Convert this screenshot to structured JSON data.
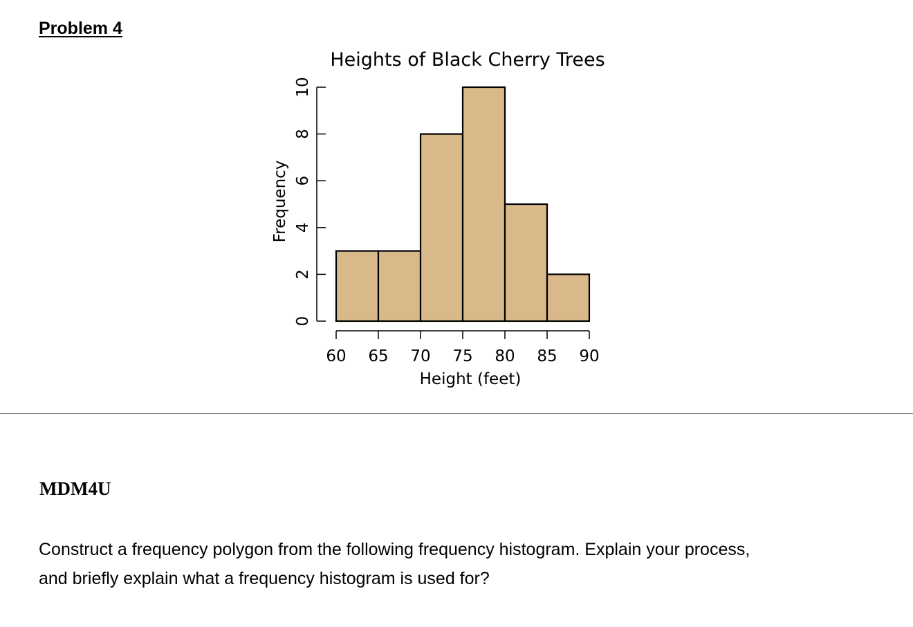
{
  "header": {
    "problem_label": "Problem 4"
  },
  "course": {
    "code": "MDM4U"
  },
  "question": {
    "line1": "Construct a frequency polygon from the following frequency histogram. Explain your process,",
    "line2": "and briefly explain what a frequency histogram is used for?"
  },
  "chart_data": {
    "type": "bar",
    "title": "Heights of Black Cherry Trees",
    "xlabel": "Height (feet)",
    "ylabel": "Frequency",
    "bins": [
      [
        60,
        65
      ],
      [
        65,
        70
      ],
      [
        70,
        75
      ],
      [
        75,
        80
      ],
      [
        80,
        85
      ],
      [
        85,
        90
      ]
    ],
    "values": [
      3,
      3,
      8,
      10,
      5,
      2
    ],
    "xticks": [
      60,
      65,
      70,
      75,
      80,
      85,
      90
    ],
    "yticks": [
      0,
      2,
      4,
      6,
      8,
      10
    ],
    "xlim": [
      60,
      90
    ],
    "ylim": [
      0,
      10
    ],
    "grid": false,
    "colors": {
      "bar_fill": "#d9b88a",
      "bar_stroke": "#000000"
    }
  }
}
